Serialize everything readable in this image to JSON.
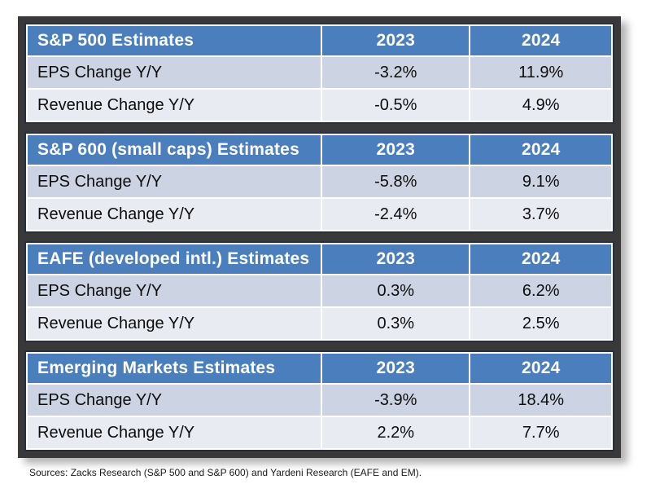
{
  "colors": {
    "frame": "#393939",
    "table_border": "#26303e",
    "header_blue": "#4a7ebc",
    "header_text": "#ffffff",
    "row_odd": "#ccd4e3",
    "row_even": "#e9ebf3",
    "cell_text": "#0d0d0d",
    "page_bg": "#ffffff",
    "footer_text": "#1a1a1a"
  },
  "tables": [
    {
      "title": "S&P 500 Estimates",
      "columns": [
        "2023",
        "2024"
      ],
      "rows": [
        {
          "label": "EPS Change Y/Y",
          "values": [
            "-3.2%",
            "11.9%"
          ]
        },
        {
          "label": "Revenue Change Y/Y",
          "values": [
            "-0.5%",
            "4.9%"
          ]
        }
      ]
    },
    {
      "title": "S&P 600 (small caps) Estimates",
      "columns": [
        "2023",
        "2024"
      ],
      "rows": [
        {
          "label": "EPS Change Y/Y",
          "values": [
            "-5.8%",
            "9.1%"
          ]
        },
        {
          "label": "Revenue Change Y/Y",
          "values": [
            "-2.4%",
            "3.7%"
          ]
        }
      ]
    },
    {
      "title": "EAFE (developed intl.) Estimates",
      "columns": [
        "2023",
        "2024"
      ],
      "rows": [
        {
          "label": "EPS Change Y/Y",
          "values": [
            "0.3%",
            "6.2%"
          ]
        },
        {
          "label": "Revenue Change Y/Y",
          "values": [
            "0.3%",
            "2.5%"
          ]
        }
      ]
    },
    {
      "title": "Emerging Markets Estimates",
      "columns": [
        "2023",
        "2024"
      ],
      "rows": [
        {
          "label": "EPS Change Y/Y",
          "values": [
            "-3.9%",
            "18.4%"
          ]
        },
        {
          "label": "Revenue Change Y/Y",
          "values": [
            "2.2%",
            "7.7%"
          ]
        }
      ]
    }
  ],
  "footer": {
    "sources": "Sources: Zacks Research (S&P 500 and S&P 600) and Yardeni Research (EAFE and EM)."
  },
  "chart_data": [
    {
      "type": "table",
      "title": "S&P 500 Estimates",
      "columns": [
        "",
        "2023",
        "2024"
      ],
      "rows": [
        [
          "EPS Change Y/Y",
          "-3.2%",
          "11.9%"
        ],
        [
          "Revenue Change Y/Y",
          "-0.5%",
          "4.9%"
        ]
      ]
    },
    {
      "type": "table",
      "title": "S&P 600 (small caps) Estimates",
      "columns": [
        "",
        "2023",
        "2024"
      ],
      "rows": [
        [
          "EPS Change Y/Y",
          "-5.8%",
          "9.1%"
        ],
        [
          "Revenue Change Y/Y",
          "-2.4%",
          "3.7%"
        ]
      ]
    },
    {
      "type": "table",
      "title": "EAFE (developed intl.) Estimates",
      "columns": [
        "",
        "2023",
        "2024"
      ],
      "rows": [
        [
          "EPS Change Y/Y",
          "0.3%",
          "6.2%"
        ],
        [
          "Revenue Change Y/Y",
          "0.3%",
          "2.5%"
        ]
      ]
    },
    {
      "type": "table",
      "title": "Emerging Markets Estimates",
      "columns": [
        "",
        "2023",
        "2024"
      ],
      "rows": [
        [
          "EPS Change Y/Y",
          "-3.9%",
          "18.4%"
        ],
        [
          "Revenue Change Y/Y",
          "2.2%",
          "7.7%"
        ]
      ]
    }
  ]
}
